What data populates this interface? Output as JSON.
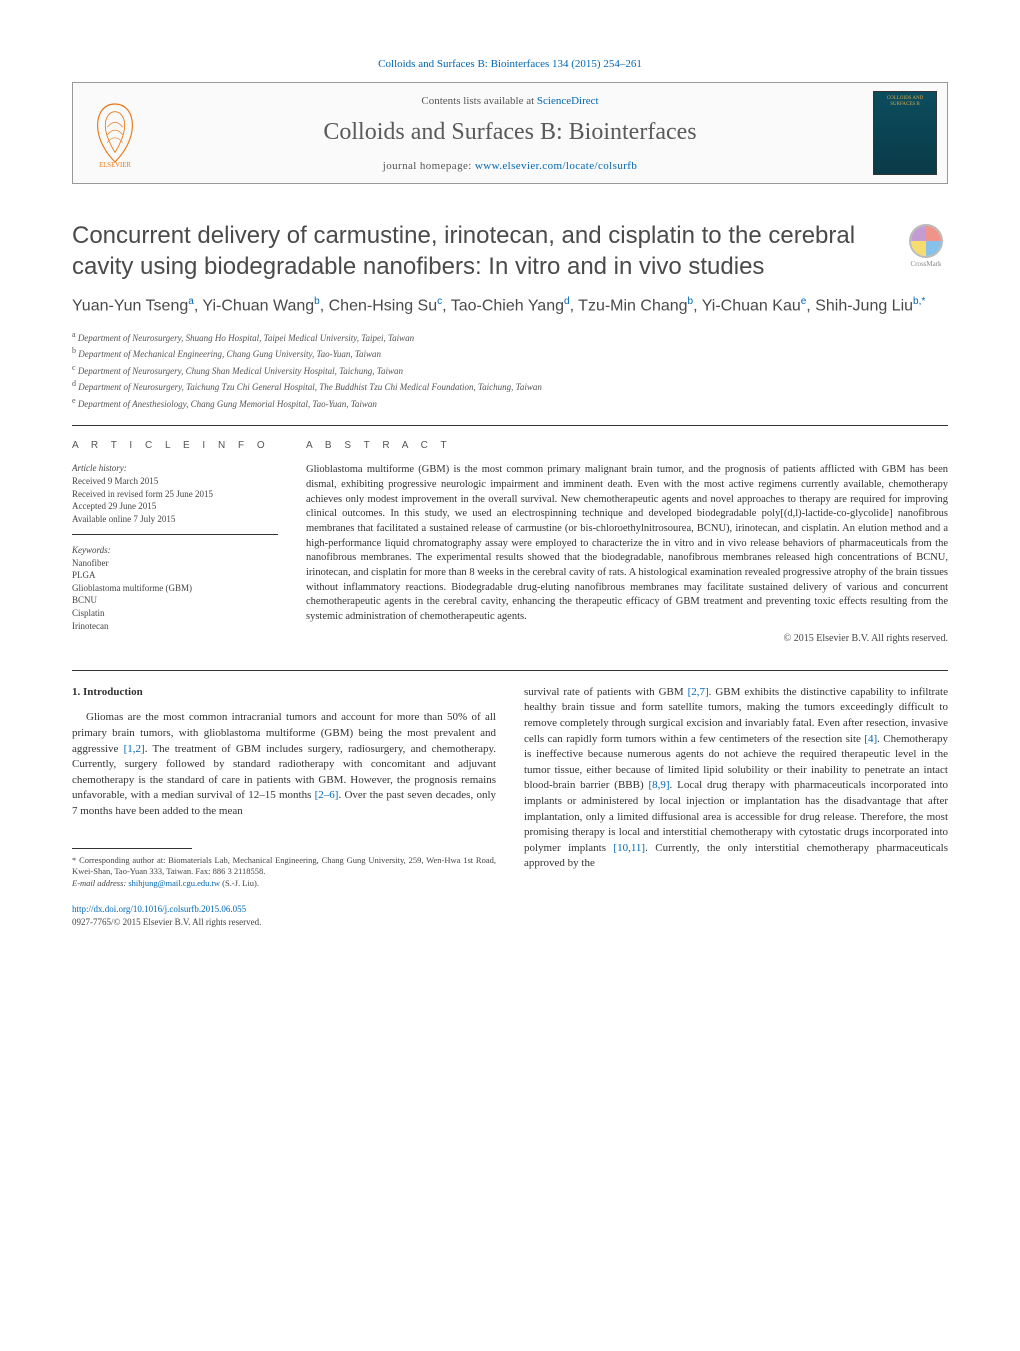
{
  "top_link": "Colloids and Surfaces B: Biointerfaces 134 (2015) 254–261",
  "header": {
    "contents_label": "Contents lists available at ",
    "contents_link": "ScienceDirect",
    "journal_name": "Colloids and Surfaces B: Biointerfaces",
    "homepage_label": "journal homepage: ",
    "homepage_link": "www.elsevier.com/locate/colsurfb",
    "cover_text": "COLLOIDS AND SURFACES B"
  },
  "crossmark_label": "CrossMark",
  "title": "Concurrent delivery of carmustine, irinotecan, and cisplatin to the cerebral cavity using biodegradable nanofibers: In vitro and in vivo studies",
  "authors_html": "Yuan-Yun Tseng<sup>a</sup>, Yi-Chuan Wang<sup>b</sup>, Chen-Hsing Su<sup>c</sup>, Tao-Chieh Yang<sup>d</sup>, Tzu-Min Chang<sup>b</sup>, Yi-Chuan Kau<sup>e</sup>, Shih-Jung Liu<sup>b,*</sup>",
  "affiliations": [
    "Department of Neurosurgery, Shuang Ho Hospital, Taipei Medical University, Taipei, Taiwan",
    "Department of Mechanical Engineering, Chang Gung University, Tao-Yuan, Taiwan",
    "Department of Neurosurgery, Chung Shan Medical University Hospital, Taichung, Taiwan",
    "Department of Neurosurgery, Taichung Tzu Chi General Hospital, The Buddhist Tzu Chi Medical Foundation, Taichung, Taiwan",
    "Department of Anesthesiology, Chang Gung Memorial Hospital, Tao-Yuan, Taiwan"
  ],
  "aff_markers": [
    "a",
    "b",
    "c",
    "d",
    "e"
  ],
  "info": {
    "heading": "A R T I C L E   I N F O",
    "history_label": "Article history:",
    "history": [
      "Received 9 March 2015",
      "Received in revised form 25 June 2015",
      "Accepted 29 June 2015",
      "Available online 7 July 2015"
    ],
    "keywords_label": "Keywords:",
    "keywords": [
      "Nanofiber",
      "PLGA",
      "Glioblastoma multiforme (GBM)",
      "BCNU",
      "Cisplatin",
      "Irinotecan"
    ]
  },
  "abstract": {
    "heading": "A B S T R A C T",
    "text": "Glioblastoma multiforme (GBM) is the most common primary malignant brain tumor, and the prognosis of patients afflicted with GBM has been dismal, exhibiting progressive neurologic impairment and imminent death. Even with the most active regimens currently available, chemotherapy achieves only modest improvement in the overall survival. New chemotherapeutic agents and novel approaches to therapy are required for improving clinical outcomes. In this study, we used an electrospinning technique and developed biodegradable poly[(d,l)-lactide-co-glycolide] nanofibrous membranes that facilitated a sustained release of carmustine (or bis-chloroethylnitrosourea, BCNU), irinotecan, and cisplatin. An elution method and a high-performance liquid chromatography assay were employed to characterize the in vitro and in vivo release behaviors of pharmaceuticals from the nanofibrous membranes. The experimental results showed that the biodegradable, nanofibrous membranes released high concentrations of BCNU, irinotecan, and cisplatin for more than 8 weeks in the cerebral cavity of rats. A histological examination revealed progressive atrophy of the brain tissues without inflammatory reactions. Biodegradable drug-eluting nanofibrous membranes may facilitate sustained delivery of various and concurrent chemotherapeutic agents in the cerebral cavity, enhancing the therapeutic efficacy of GBM treatment and preventing toxic effects resulting from the systemic administration of chemotherapeutic agents.",
    "copyright": "© 2015 Elsevier B.V. All rights reserved."
  },
  "section1": {
    "heading": "1. Introduction",
    "col1": "Gliomas are the most common intracranial tumors and account for more than 50% of all primary brain tumors, with glioblastoma multiforme (GBM) being the most prevalent and aggressive [1,2]. The treatment of GBM includes surgery, radiosurgery, and chemotherapy. Currently, surgery followed by standard radiotherapy with concomitant and adjuvant chemotherapy is the standard of care in patients with GBM. However, the prognosis remains unfavorable, with a median survival of 12–15 months [2–6]. Over the past seven decades, only 7 months have been added to the mean",
    "col2": "survival rate of patients with GBM [2,7]. GBM exhibits the distinctive capability to infiltrate healthy brain tissue and form satellite tumors, making the tumors exceedingly difficult to remove completely through surgical excision and invariably fatal. Even after resection, invasive cells can rapidly form tumors within a few centimeters of the resection site [4]. Chemotherapy is ineffective because numerous agents do not achieve the required therapeutic level in the tumor tissue, either because of limited lipid solubility or their inability to penetrate an intact blood-brain barrier (BBB) [8,9]. Local drug therapy with pharmaceuticals incorporated into implants or administered by local injection or implantation has the disadvantage that after implantation, only a limited diffusional area is accessible for drug release. Therefore, the most promising therapy is local and interstitial chemotherapy with cytostatic drugs incorporated into polymer implants [10,11]. Currently, the only interstitial chemotherapy pharmaceuticals approved by the"
  },
  "refs": {
    "r1": "[1,2]",
    "r2": "[2–6]",
    "r3": "[2,7]",
    "r4a": "[4]",
    "r5": "[8,9]",
    "r6": "[10,11]"
  },
  "footnote": {
    "corr": "* Corresponding author at: Biomaterials Lab, Mechanical Engineering, Chang Gung University, 259, Wen-Hwa 1st Road, Kwei-Shan, Tao-Yuan 333, Taiwan. Fax: 886 3 2118558.",
    "email_label": "E-mail address: ",
    "email": "shihjung@mail.cgu.edu.tw",
    "email_suffix": " (S.-J. Liu)."
  },
  "footer": {
    "doi": "http://dx.doi.org/10.1016/j.colsurfb.2015.06.055",
    "copyright": "0927-7765/© 2015 Elsevier B.V. All rights reserved."
  },
  "colors": {
    "link": "#0066b3",
    "text": "#333333",
    "heading_gray": "#5a5a5a",
    "elsevier_orange": "#e67817"
  }
}
